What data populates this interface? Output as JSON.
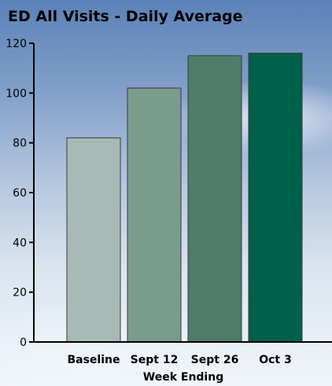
{
  "chart_data": {
    "type": "bar",
    "title": "ED All Visits - Daily Average",
    "xlabel": "Week Ending",
    "ylabel": "",
    "categories": [
      "Baseline",
      "Sept 12",
      "Sept 26",
      "Oct 3"
    ],
    "values": [
      82,
      102,
      115,
      116
    ],
    "ylim": [
      0,
      120
    ],
    "yticks": [
      "0",
      "20",
      "40",
      "60",
      "80",
      "100",
      "120"
    ],
    "bar_colors": [
      "#a8bab5",
      "#7a9c8e",
      "#4f7d6a",
      "#00604a"
    ],
    "grid": false,
    "legend": "none"
  }
}
